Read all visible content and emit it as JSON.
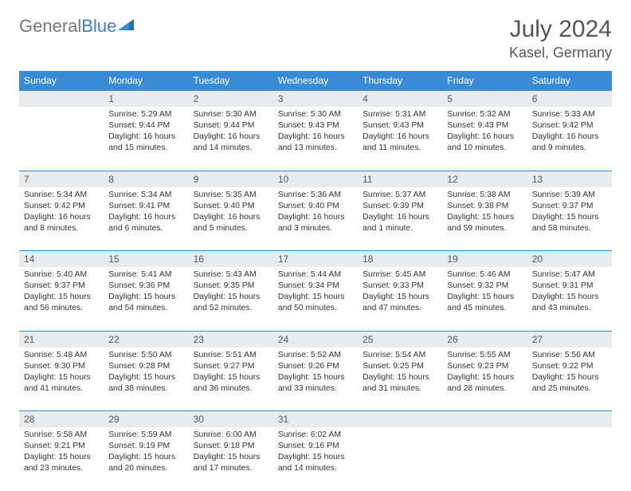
{
  "logo": {
    "part1": "General",
    "part2": "Blue",
    "accent_color": "#3b8bd4"
  },
  "title": "July 2024",
  "location": "Kasel, Germany",
  "header_bg": "#3b8bd4",
  "daynum_bg": "#e9ecef",
  "days_of_week": [
    "Sunday",
    "Monday",
    "Tuesday",
    "Wednesday",
    "Thursday",
    "Friday",
    "Saturday"
  ],
  "weeks": [
    {
      "nums": [
        "",
        "1",
        "2",
        "3",
        "4",
        "5",
        "6"
      ],
      "cells": [
        null,
        {
          "sunrise": "Sunrise: 5:29 AM",
          "sunset": "Sunset: 9:44 PM",
          "daylight": "Daylight: 16 hours and 15 minutes."
        },
        {
          "sunrise": "Sunrise: 5:30 AM",
          "sunset": "Sunset: 9:44 PM",
          "daylight": "Daylight: 16 hours and 14 minutes."
        },
        {
          "sunrise": "Sunrise: 5:30 AM",
          "sunset": "Sunset: 9:43 PM",
          "daylight": "Daylight: 16 hours and 13 minutes."
        },
        {
          "sunrise": "Sunrise: 5:31 AM",
          "sunset": "Sunset: 9:43 PM",
          "daylight": "Daylight: 16 hours and 11 minutes."
        },
        {
          "sunrise": "Sunrise: 5:32 AM",
          "sunset": "Sunset: 9:43 PM",
          "daylight": "Daylight: 16 hours and 10 minutes."
        },
        {
          "sunrise": "Sunrise: 5:33 AM",
          "sunset": "Sunset: 9:42 PM",
          "daylight": "Daylight: 16 hours and 9 minutes."
        }
      ]
    },
    {
      "nums": [
        "7",
        "8",
        "9",
        "10",
        "11",
        "12",
        "13"
      ],
      "cells": [
        {
          "sunrise": "Sunrise: 5:34 AM",
          "sunset": "Sunset: 9:42 PM",
          "daylight": "Daylight: 16 hours and 8 minutes."
        },
        {
          "sunrise": "Sunrise: 5:34 AM",
          "sunset": "Sunset: 9:41 PM",
          "daylight": "Daylight: 16 hours and 6 minutes."
        },
        {
          "sunrise": "Sunrise: 5:35 AM",
          "sunset": "Sunset: 9:40 PM",
          "daylight": "Daylight: 16 hours and 5 minutes."
        },
        {
          "sunrise": "Sunrise: 5:36 AM",
          "sunset": "Sunset: 9:40 PM",
          "daylight": "Daylight: 16 hours and 3 minutes."
        },
        {
          "sunrise": "Sunrise: 5:37 AM",
          "sunset": "Sunset: 9:39 PM",
          "daylight": "Daylight: 16 hours and 1 minute."
        },
        {
          "sunrise": "Sunrise: 5:38 AM",
          "sunset": "Sunset: 9:38 PM",
          "daylight": "Daylight: 15 hours and 59 minutes."
        },
        {
          "sunrise": "Sunrise: 5:39 AM",
          "sunset": "Sunset: 9:37 PM",
          "daylight": "Daylight: 15 hours and 58 minutes."
        }
      ]
    },
    {
      "nums": [
        "14",
        "15",
        "16",
        "17",
        "18",
        "19",
        "20"
      ],
      "cells": [
        {
          "sunrise": "Sunrise: 5:40 AM",
          "sunset": "Sunset: 9:37 PM",
          "daylight": "Daylight: 15 hours and 56 minutes."
        },
        {
          "sunrise": "Sunrise: 5:41 AM",
          "sunset": "Sunset: 9:36 PM",
          "daylight": "Daylight: 15 hours and 54 minutes."
        },
        {
          "sunrise": "Sunrise: 5:43 AM",
          "sunset": "Sunset: 9:35 PM",
          "daylight": "Daylight: 15 hours and 52 minutes."
        },
        {
          "sunrise": "Sunrise: 5:44 AM",
          "sunset": "Sunset: 9:34 PM",
          "daylight": "Daylight: 15 hours and 50 minutes."
        },
        {
          "sunrise": "Sunrise: 5:45 AM",
          "sunset": "Sunset: 9:33 PM",
          "daylight": "Daylight: 15 hours and 47 minutes."
        },
        {
          "sunrise": "Sunrise: 5:46 AM",
          "sunset": "Sunset: 9:32 PM",
          "daylight": "Daylight: 15 hours and 45 minutes."
        },
        {
          "sunrise": "Sunrise: 5:47 AM",
          "sunset": "Sunset: 9:31 PM",
          "daylight": "Daylight: 15 hours and 43 minutes."
        }
      ]
    },
    {
      "nums": [
        "21",
        "22",
        "23",
        "24",
        "25",
        "26",
        "27"
      ],
      "cells": [
        {
          "sunrise": "Sunrise: 5:48 AM",
          "sunset": "Sunset: 9:30 PM",
          "daylight": "Daylight: 15 hours and 41 minutes."
        },
        {
          "sunrise": "Sunrise: 5:50 AM",
          "sunset": "Sunset: 9:28 PM",
          "daylight": "Daylight: 15 hours and 38 minutes."
        },
        {
          "sunrise": "Sunrise: 5:51 AM",
          "sunset": "Sunset: 9:27 PM",
          "daylight": "Daylight: 15 hours and 36 minutes."
        },
        {
          "sunrise": "Sunrise: 5:52 AM",
          "sunset": "Sunset: 9:26 PM",
          "daylight": "Daylight: 15 hours and 33 minutes."
        },
        {
          "sunrise": "Sunrise: 5:54 AM",
          "sunset": "Sunset: 9:25 PM",
          "daylight": "Daylight: 15 hours and 31 minutes."
        },
        {
          "sunrise": "Sunrise: 5:55 AM",
          "sunset": "Sunset: 9:23 PM",
          "daylight": "Daylight: 15 hours and 28 minutes."
        },
        {
          "sunrise": "Sunrise: 5:56 AM",
          "sunset": "Sunset: 9:22 PM",
          "daylight": "Daylight: 15 hours and 25 minutes."
        }
      ]
    },
    {
      "nums": [
        "28",
        "29",
        "30",
        "31",
        "",
        "",
        ""
      ],
      "cells": [
        {
          "sunrise": "Sunrise: 5:58 AM",
          "sunset": "Sunset: 9:21 PM",
          "daylight": "Daylight: 15 hours and 23 minutes."
        },
        {
          "sunrise": "Sunrise: 5:59 AM",
          "sunset": "Sunset: 9:19 PM",
          "daylight": "Daylight: 15 hours and 20 minutes."
        },
        {
          "sunrise": "Sunrise: 6:00 AM",
          "sunset": "Sunset: 9:18 PM",
          "daylight": "Daylight: 15 hours and 17 minutes."
        },
        {
          "sunrise": "Sunrise: 6:02 AM",
          "sunset": "Sunset: 9:16 PM",
          "daylight": "Daylight: 15 hours and 14 minutes."
        },
        null,
        null,
        null
      ]
    }
  ]
}
